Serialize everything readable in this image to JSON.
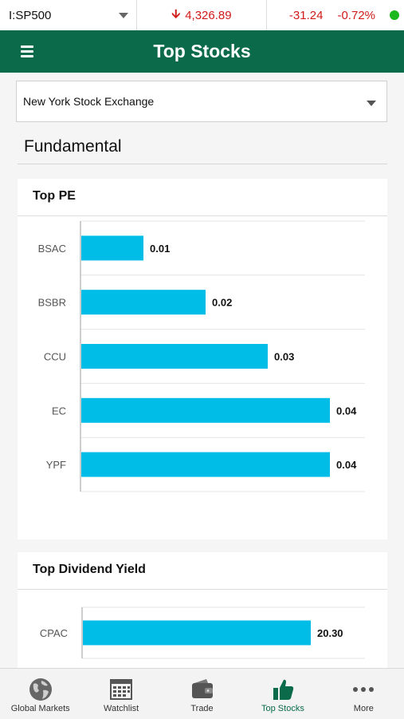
{
  "ticker": {
    "symbol": "I:SP500",
    "price": "4,326.89",
    "change": "-31.24",
    "change_pct": "-0.72%",
    "status_color": "#1db81d",
    "change_color": "#d11a1a"
  },
  "header": {
    "title": "Top Stocks",
    "color": "#0a6a4a"
  },
  "exchange_select": {
    "value": "New York Stock Exchange"
  },
  "section": {
    "title": "Fundamental"
  },
  "top_pe": {
    "title": "Top PE"
  },
  "top_dividend": {
    "title": "Top Dividend Yield"
  },
  "chart_data": [
    {
      "type": "bar",
      "orientation": "horizontal",
      "title": "Top PE",
      "categories": [
        "BSAC",
        "BSBR",
        "CCU",
        "EC",
        "YPF"
      ],
      "values": [
        0.01,
        0.02,
        0.03,
        0.04,
        0.04
      ],
      "data_labels": [
        "0.01",
        "0.02",
        "0.03",
        "0.04",
        "0.04"
      ],
      "color": "#00bde8",
      "grid": true
    },
    {
      "type": "bar",
      "orientation": "horizontal",
      "title": "Top Dividend Yield",
      "categories": [
        "CPAC"
      ],
      "values": [
        20.3
      ],
      "data_labels": [
        "20.30"
      ],
      "color": "#00bde8",
      "grid": true
    }
  ],
  "tabs": [
    {
      "label": "Global Markets",
      "icon": "globe-icon"
    },
    {
      "label": "Watchlist",
      "icon": "calendar-grid-icon"
    },
    {
      "label": "Trade",
      "icon": "wallet-icon"
    },
    {
      "label": "Top Stocks",
      "icon": "thumbs-up-icon",
      "active": true
    },
    {
      "label": "More",
      "icon": "more-dots-icon"
    }
  ]
}
